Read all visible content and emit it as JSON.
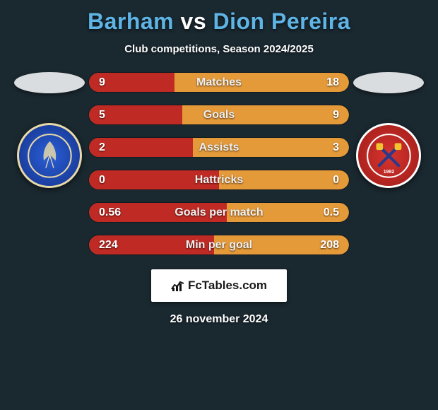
{
  "header": {
    "title_left": "Barham",
    "title_vs": "vs",
    "title_right": "Dion Pereira",
    "title_color_left": "#5fb4e6",
    "title_color_vs": "#ffffff",
    "title_color_right": "#5fb4e6",
    "subtitle": "Club competitions, Season 2024/2025"
  },
  "players": {
    "left_oval_bg": "#d9dde0",
    "right_oval_bg": "#d9dde0"
  },
  "crests": {
    "left_bg": "#1b3fa0",
    "right_bg": "#c22b27"
  },
  "stats": {
    "bar_bg_left": "#c02a24",
    "bar_bg_right": "#e59a3a",
    "rows": [
      {
        "label": "Matches",
        "left": "9",
        "right": "18",
        "left_pct": 33
      },
      {
        "label": "Goals",
        "left": "5",
        "right": "9",
        "left_pct": 36
      },
      {
        "label": "Assists",
        "left": "2",
        "right": "3",
        "left_pct": 40
      },
      {
        "label": "Hattricks",
        "left": "0",
        "right": "0",
        "left_pct": 50
      },
      {
        "label": "Goals per match",
        "left": "0.56",
        "right": "0.5",
        "left_pct": 53
      },
      {
        "label": "Min per goal",
        "left": "224",
        "right": "208",
        "left_pct": 48
      }
    ]
  },
  "branding": {
    "text": "FcTables.com"
  },
  "footer": {
    "date": "26 november 2024"
  }
}
